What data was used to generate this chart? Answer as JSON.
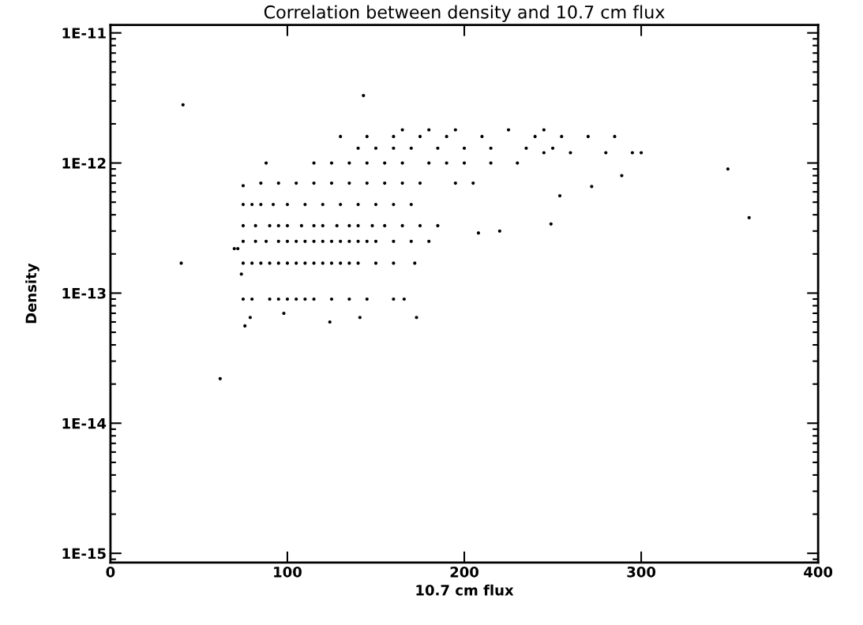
{
  "chart_data": {
    "type": "scatter",
    "title": "Correlation between density and 10.7 cm flux",
    "xlabel": "10.7 cm flux",
    "ylabel": "Density",
    "log": "y",
    "grid": false,
    "marker": "circle",
    "xlim": [
      0,
      400
    ],
    "xticks": [
      0,
      100,
      200,
      300,
      400
    ],
    "ylim": [
      8.5e-16,
      1.15e-11
    ],
    "yticks": [
      {
        "value": 1e-15,
        "label": "1E-15"
      },
      {
        "value": 1e-14,
        "label": "1E-14"
      },
      {
        "value": 1e-13,
        "label": "1E-13"
      },
      {
        "value": 1e-12,
        "label": "1E-12"
      },
      {
        "value": 1e-11,
        "label": "1E-11"
      }
    ],
    "series": [
      {
        "color": "#000000",
        "x": [
          75,
          80,
          85,
          90,
          95,
          100,
          105,
          110,
          115,
          120,
          125,
          130,
          135,
          140,
          150,
          160,
          172,
          75,
          82,
          88,
          95,
          100,
          105,
          110,
          115,
          120,
          125,
          130,
          135,
          140,
          145,
          150,
          160,
          170,
          180,
          75,
          82,
          90,
          95,
          100,
          108,
          115,
          120,
          128,
          135,
          140,
          148,
          155,
          165,
          175,
          185,
          75,
          80,
          85,
          92,
          100,
          110,
          120,
          130,
          140,
          150,
          160,
          170,
          85,
          95,
          105,
          115,
          125,
          135,
          145,
          155,
          165,
          175,
          195,
          205,
          115,
          125,
          135,
          145,
          155,
          165,
          180,
          190,
          200,
          215,
          230,
          75,
          80,
          90,
          95,
          100,
          105,
          110,
          115,
          125,
          135,
          145,
          160,
          140,
          150,
          160,
          170,
          185,
          200,
          215,
          235,
          250,
          130,
          145,
          160,
          175,
          190,
          210,
          240,
          255,
          270,
          285,
          165,
          180,
          195,
          225,
          245,
          245,
          260,
          280,
          295,
          300,
          254,
          272,
          289,
          220,
          249,
          208,
          76,
          79,
          124,
          141,
          166,
          173,
          98,
          74,
          72,
          70,
          88,
          75,
          143,
          41,
          40,
          62,
          349,
          361
        ],
        "values": [
          1.7e-13,
          1.7e-13,
          1.7e-13,
          1.7e-13,
          1.7e-13,
          1.7e-13,
          1.7e-13,
          1.7e-13,
          1.7e-13,
          1.7e-13,
          1.7e-13,
          1.7e-13,
          1.7e-13,
          1.7e-13,
          1.7e-13,
          1.7e-13,
          1.7e-13,
          2.5e-13,
          2.5e-13,
          2.5e-13,
          2.5e-13,
          2.5e-13,
          2.5e-13,
          2.5e-13,
          2.5e-13,
          2.5e-13,
          2.5e-13,
          2.5e-13,
          2.5e-13,
          2.5e-13,
          2.5e-13,
          2.5e-13,
          2.5e-13,
          2.5e-13,
          2.5e-13,
          3.3e-13,
          3.3e-13,
          3.3e-13,
          3.3e-13,
          3.3e-13,
          3.3e-13,
          3.3e-13,
          3.3e-13,
          3.3e-13,
          3.3e-13,
          3.3e-13,
          3.3e-13,
          3.3e-13,
          3.3e-13,
          3.3e-13,
          3.3e-13,
          4.8e-13,
          4.8e-13,
          4.8e-13,
          4.8e-13,
          4.8e-13,
          4.8e-13,
          4.8e-13,
          4.8e-13,
          4.8e-13,
          4.8e-13,
          4.8e-13,
          4.8e-13,
          7e-13,
          7e-13,
          7e-13,
          7e-13,
          7e-13,
          7e-13,
          7e-13,
          7e-13,
          7e-13,
          7e-13,
          7e-13,
          7e-13,
          1e-12,
          1e-12,
          1e-12,
          1e-12,
          1e-12,
          1e-12,
          1e-12,
          1e-12,
          1e-12,
          1e-12,
          1e-12,
          9e-14,
          9e-14,
          9e-14,
          9e-14,
          9e-14,
          9e-14,
          9e-14,
          9e-14,
          9e-14,
          9e-14,
          9e-14,
          9e-14,
          1.3e-12,
          1.3e-12,
          1.3e-12,
          1.3e-12,
          1.3e-12,
          1.3e-12,
          1.3e-12,
          1.3e-12,
          1.3e-12,
          1.6e-12,
          1.6e-12,
          1.6e-12,
          1.6e-12,
          1.6e-12,
          1.6e-12,
          1.6e-12,
          1.6e-12,
          1.6e-12,
          1.6e-12,
          1.8e-12,
          1.8e-12,
          1.8e-12,
          1.8e-12,
          1.8e-12,
          1.2e-12,
          1.2e-12,
          1.2e-12,
          1.2e-12,
          1.2e-12,
          5.6e-13,
          6.6e-13,
          8e-13,
          3e-13,
          3.4e-13,
          2.9e-13,
          5.6e-14,
          6.5e-14,
          6e-14,
          6.5e-14,
          9e-14,
          6.5e-14,
          7e-14,
          1.4e-13,
          2.2e-13,
          2.2e-13,
          1e-12,
          6.7e-13,
          3.3e-12,
          2.8e-12,
          1.7e-13,
          2.2e-14,
          9e-13,
          3.8e-13
        ]
      }
    ]
  }
}
